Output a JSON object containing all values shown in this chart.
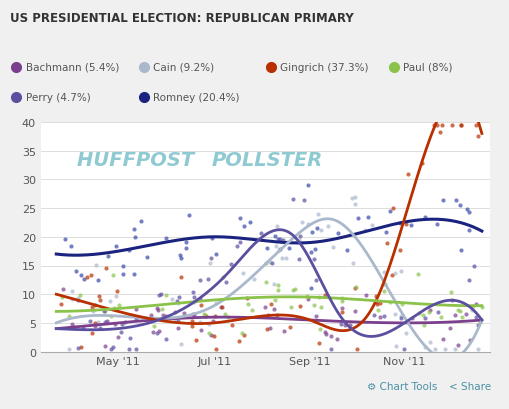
{
  "title": "US PRESIDENTIAL ELECTION: REPUBLICAN PRIMARY",
  "background_color": "#f0f0f0",
  "plot_bg_color": "#ffffff",
  "candidates": [
    "Bachmann",
    "Cain",
    "Gingrich",
    "Paul",
    "Perry",
    "Romney"
  ],
  "legend_labels": [
    "Bachmann (5.4%)",
    "Cain (9.2%)",
    "Gingrich (37.3%)",
    "Paul (8%)",
    "Perry (4.7%)",
    "Romney (20.4%)"
  ],
  "colors": {
    "Bachmann": "#7b3f8c",
    "Cain": "#aab8cc",
    "Gingrich": "#b83000",
    "Paul": "#8bc34a",
    "Perry": "#5b4fa0",
    "Romney": "#1a237e"
  },
  "dot_colors": {
    "Bachmann": "#7b3f8c",
    "Cain": "#aab8cc",
    "Gingrich": "#b83000",
    "Paul": "#8bc34a",
    "Perry": "#5b4fa0",
    "Romney": "#3949ab"
  },
  "ylim": [
    0,
    40
  ],
  "yticks": [
    0,
    5,
    10,
    15,
    20,
    25,
    30,
    35,
    40
  ],
  "huffpost_color": "#2196a6",
  "footer_bg": "#e8e8e8"
}
